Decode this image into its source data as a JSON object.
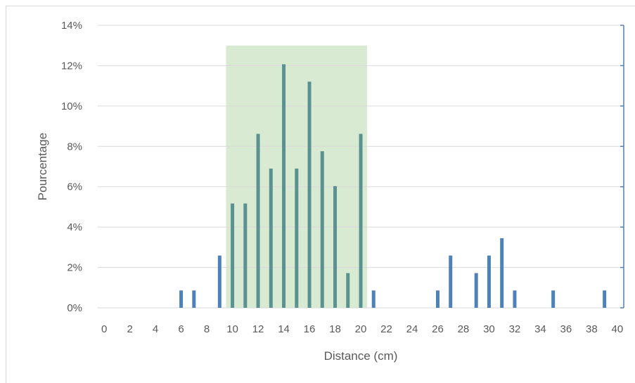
{
  "chart_data": {
    "type": "bar",
    "xlabel": "Distance (cm)",
    "ylabel": "Pourcentage",
    "xlim": [
      -0.5,
      40.5
    ],
    "ylim": [
      0,
      14
    ],
    "x_ticks": [
      "0",
      "2",
      "4",
      "6",
      "8",
      "10",
      "12",
      "14",
      "16",
      "18",
      "20",
      "22",
      "24",
      "26",
      "28",
      "30",
      "32",
      "34",
      "36",
      "38",
      "40"
    ],
    "x_tick_values": [
      0,
      2,
      4,
      6,
      8,
      10,
      12,
      14,
      16,
      18,
      20,
      22,
      24,
      26,
      28,
      30,
      32,
      34,
      36,
      38,
      40
    ],
    "y_ticks": [
      "0%",
      "2%",
      "4%",
      "6%",
      "8%",
      "10%",
      "12%",
      "14%"
    ],
    "y_tick_values": [
      0,
      2,
      4,
      6,
      8,
      10,
      12,
      14
    ],
    "grid": true,
    "highlight_band": {
      "x_range": [
        9.5,
        20.5
      ],
      "y_max": 13,
      "color": "#d9ead3"
    },
    "colors": {
      "bar": "#4e81b8",
      "bar_in_band": "#5a9291",
      "grid": "#d9d9d9",
      "right_axis": "#4e81b8",
      "text": "#595959"
    },
    "x": [
      6,
      7,
      9,
      10,
      11,
      12,
      13,
      14,
      15,
      16,
      17,
      18,
      19,
      20,
      21,
      26,
      27,
      29,
      30,
      31,
      32,
      35,
      39
    ],
    "values": [
      0.86,
      0.86,
      2.59,
      5.17,
      5.17,
      8.62,
      6.9,
      12.07,
      6.9,
      11.21,
      7.76,
      6.03,
      1.72,
      8.62,
      0.86,
      0.86,
      2.59,
      1.72,
      2.59,
      3.45,
      0.86,
      0.86,
      0.86
    ]
  }
}
